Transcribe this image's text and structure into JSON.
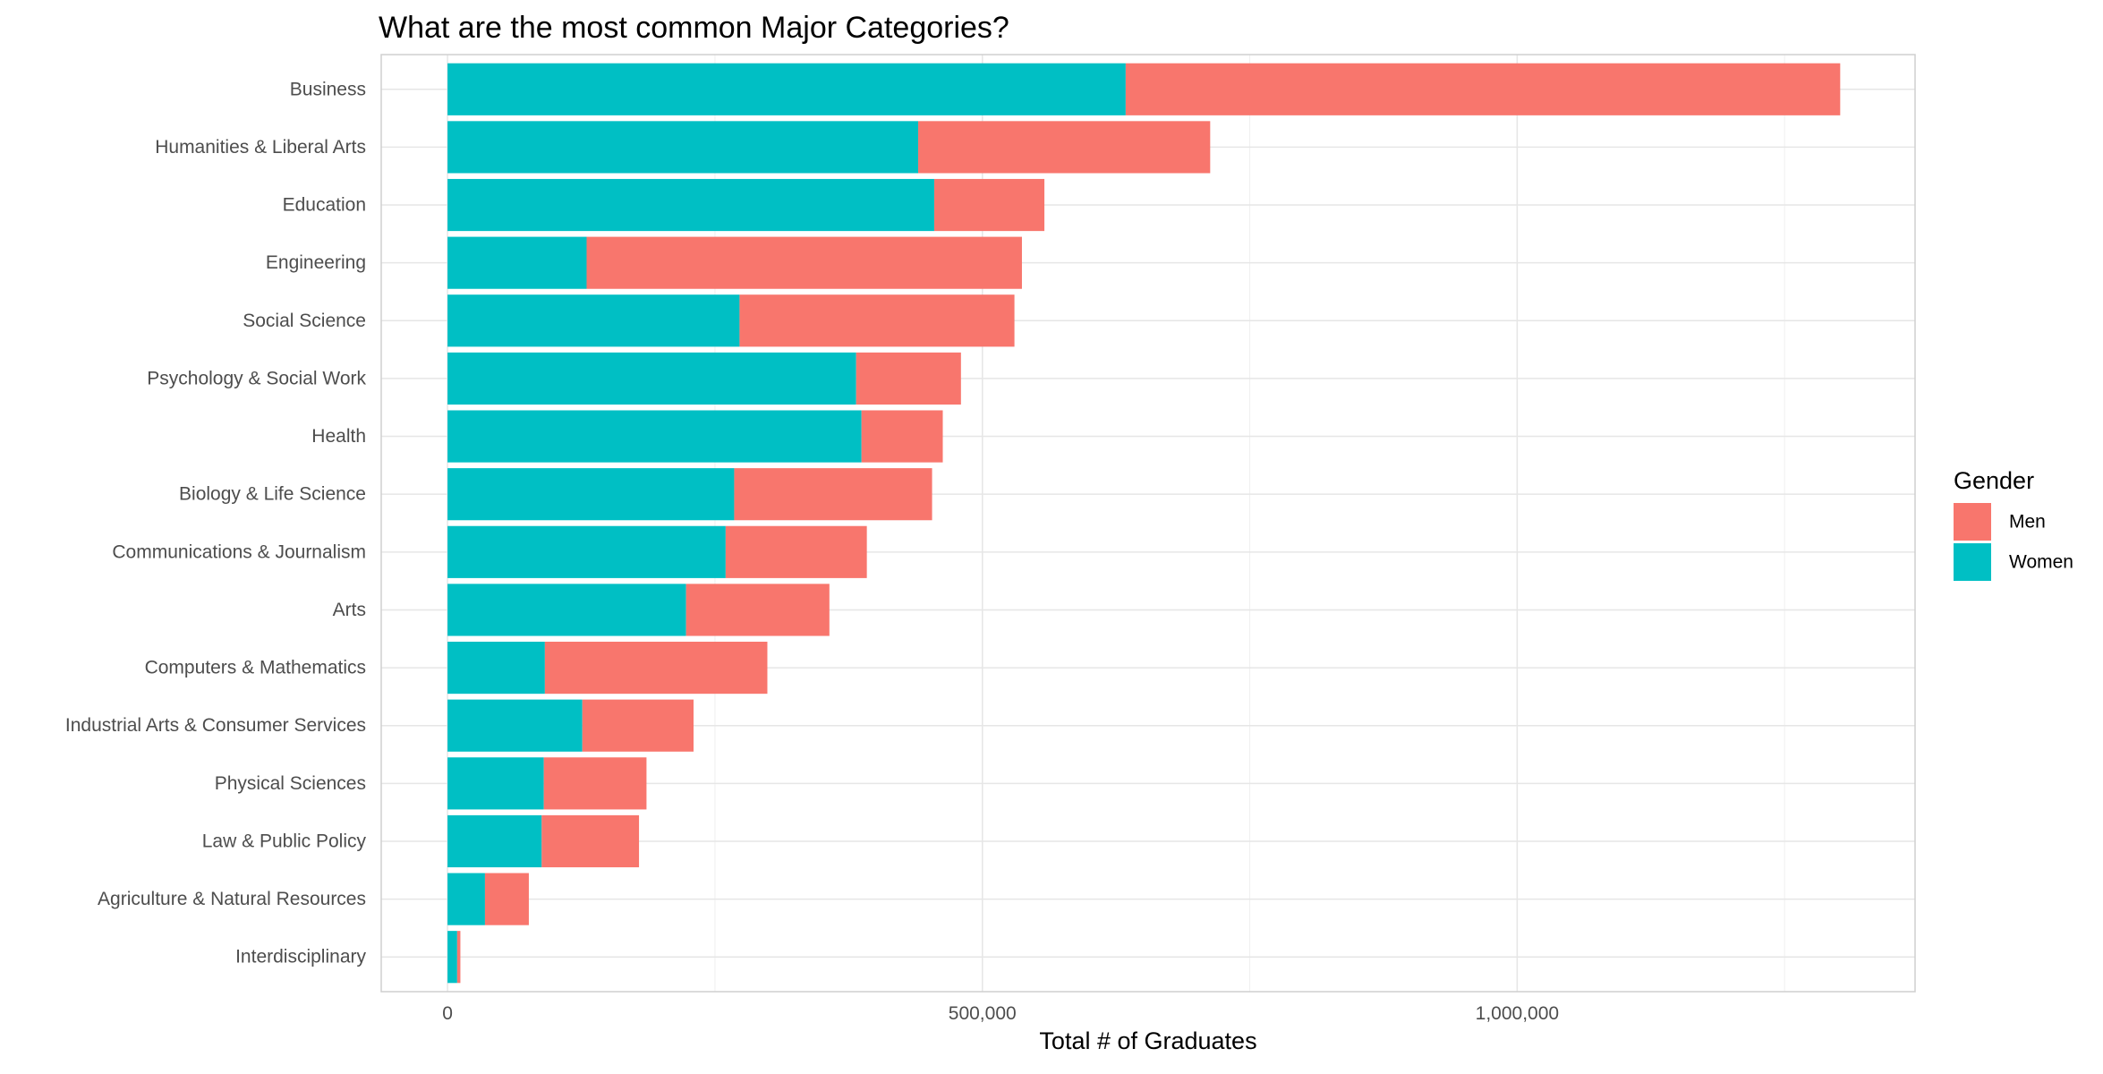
{
  "chart_data": {
    "type": "bar",
    "orientation": "horizontal",
    "stacked": true,
    "title": "What are the most common Major Categories?",
    "xlabel": "Total # of Graduates",
    "ylabel": "",
    "xlim": [
      -62000,
      1372000
    ],
    "x_ticks": [
      0,
      500000,
      1000000
    ],
    "x_tick_labels": [
      "0",
      "500,000",
      "1,000,000"
    ],
    "grid": true,
    "legend": {
      "title": "Gender",
      "position": "right",
      "entries": [
        "Men",
        "Women"
      ]
    },
    "categories": [
      "Business",
      "Humanities & Liberal Arts",
      "Education",
      "Engineering",
      "Social Science",
      "Psychology & Social Work",
      "Health",
      "Biology & Life Science",
      "Communications & Journalism",
      "Arts",
      "Computers & Mathematics",
      "Industrial Arts & Consumer Services",
      "Physical Sciences",
      "Law & Public Policy",
      "Agriculture & Natural Resources",
      "Interdisciplinary"
    ],
    "series": [
      {
        "name": "Women",
        "color": "#00BFC4",
        "values": [
          634000,
          440000,
          455000,
          130000,
          273000,
          382000,
          387000,
          268000,
          260000,
          223000,
          91000,
          126000,
          90000,
          88000,
          35000,
          9000
        ]
      },
      {
        "name": "Men",
        "color": "#F8766D",
        "values": [
          668000,
          273000,
          103000,
          407000,
          257000,
          98000,
          76000,
          185000,
          132000,
          134000,
          208000,
          104000,
          96000,
          91000,
          41000,
          3000
        ]
      }
    ]
  }
}
